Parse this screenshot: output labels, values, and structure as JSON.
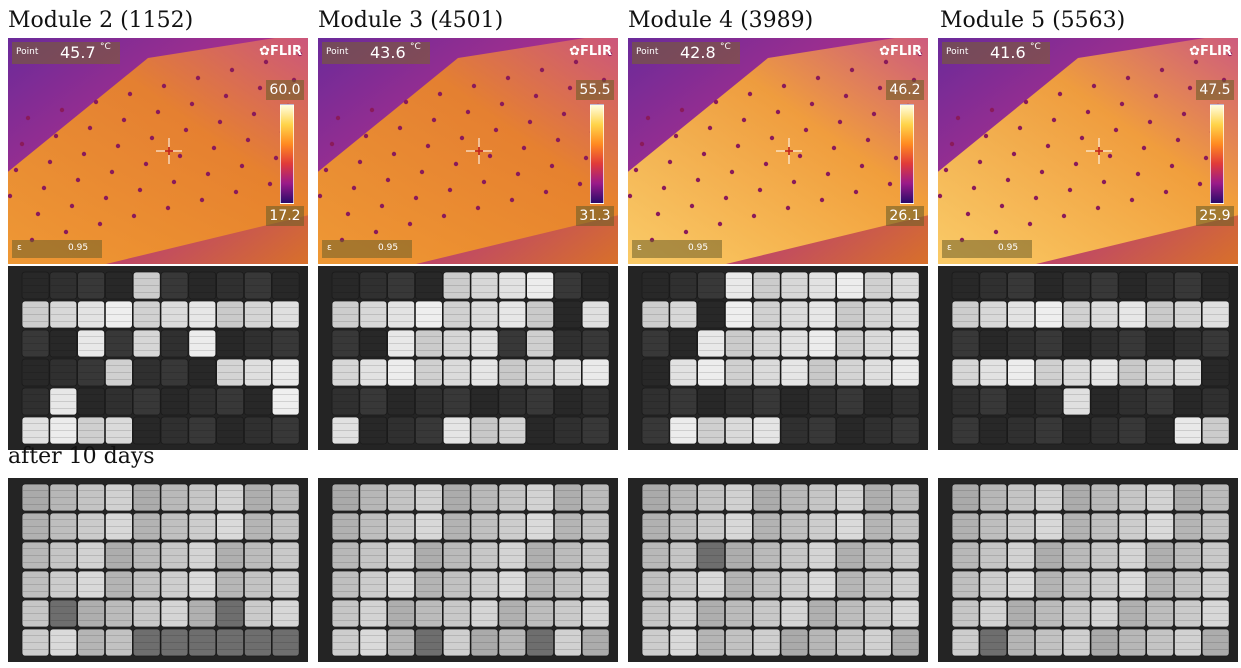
{
  "modules": [
    {
      "title": "Module 2 (1152)",
      "point_label": "Point",
      "point_value": "45.7",
      "unit": "°C",
      "scale_max": "60.0",
      "scale_min": "17.2",
      "epsilon_label": "ε",
      "epsilon": "0.95",
      "brand": "FLIR"
    },
    {
      "title": "Module 3 (4501)",
      "point_label": "Point",
      "point_value": "43.6",
      "unit": "°C",
      "scale_max": "55.5",
      "scale_min": "31.3",
      "epsilon_label": "ε",
      "epsilon": "0.95",
      "brand": "FLIR"
    },
    {
      "title": "Module 4 (3989)",
      "point_label": "Point",
      "point_value": "42.8",
      "unit": "°C",
      "scale_max": "46.2",
      "scale_min": "26.1",
      "epsilon_label": "ε",
      "epsilon": "0.95",
      "brand": "FLIR"
    },
    {
      "title": "Module 5 (5563)",
      "point_label": "Point",
      "point_value": "41.6",
      "unit": "°C",
      "scale_max": "47.5",
      "scale_min": "25.9",
      "epsilon_label": "ε",
      "epsilon": "0.95",
      "brand": "FLIR"
    }
  ],
  "after_label": "after 10 days",
  "el_patterns": {
    "before": [
      [
        "0000100000",
        "1111111111",
        "0010101000",
        "0001000111",
        "0100000001",
        "1111000000"
      ],
      [
        "0000111100",
        "1111111101",
        "0011110100",
        "1111111111",
        "0000000000",
        "1000111000"
      ],
      [
        "0001111111",
        "1101111111",
        "0011111111",
        "0111111111",
        "0000000000",
        "0111100000"
      ],
      [
        "0000000000",
        "1111111111",
        "0000000000",
        "1111111110",
        "0000100000",
        "0000000011"
      ]
    ],
    "after": [
      [
        "1111111111",
        "1111111111",
        "1111111111",
        "1111111111",
        "1011111011",
        "1111000000"
      ],
      [
        "1111111111",
        "1111111111",
        "1111111111",
        "1111111111",
        "1111111111",
        "1110111011"
      ],
      [
        "1111111111",
        "1111111111",
        "1101111111",
        "1111111111",
        "1111111111",
        "1111111111"
      ],
      [
        "1111111111",
        "1111111111",
        "1111111111",
        "1111111111",
        "1111111111",
        "1011111111"
      ]
    ]
  }
}
